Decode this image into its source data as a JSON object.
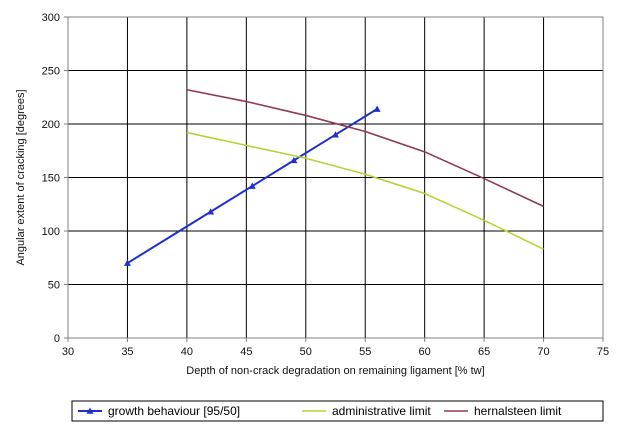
{
  "chart_data": {
    "type": "line",
    "xlabel": "Depth of non-crack degradation on remaining ligament [% tw]",
    "ylabel": "Angular extent of cracking [degrees]",
    "xlim": [
      30,
      75
    ],
    "ylim": [
      0,
      300
    ],
    "x_ticks": [
      30,
      35,
      40,
      45,
      50,
      55,
      60,
      65,
      70,
      75
    ],
    "y_ticks": [
      0,
      50,
      100,
      150,
      200,
      250,
      300
    ],
    "grid": true,
    "legend_position": "bottom",
    "series": [
      {
        "name": "growth behaviour [95/50]",
        "color": "#1f2fd0",
        "marker": "triangle",
        "x": [
          35,
          42,
          45.5,
          49,
          52.5,
          56
        ],
        "y": [
          70,
          118,
          142,
          166,
          190,
          214
        ]
      },
      {
        "name": "administrative limit",
        "color": "#b5d334",
        "marker": "none",
        "x": [
          40,
          45,
          50,
          55,
          60,
          65,
          70
        ],
        "y": [
          192,
          180,
          168,
          153,
          135,
          110,
          83
        ]
      },
      {
        "name": "hernalsteen limit",
        "color": "#8e3d4f",
        "marker": "none",
        "x": [
          40,
          45,
          50,
          55,
          60,
          65,
          70
        ],
        "y": [
          232,
          221,
          208,
          193,
          174,
          149,
          123
        ]
      }
    ]
  }
}
